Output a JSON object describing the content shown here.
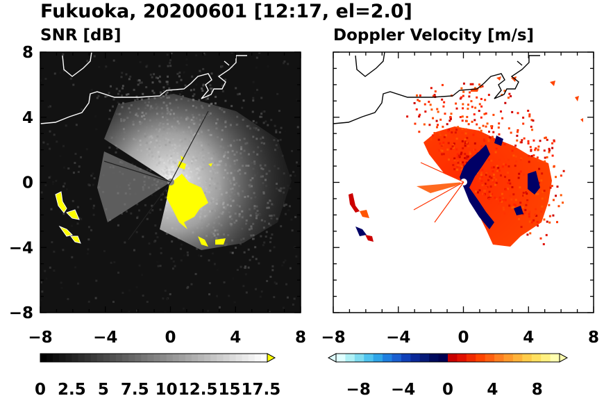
{
  "figure": {
    "title": "Fukuoka, 20200601 [12:17, el=2.0]"
  },
  "panels": {
    "snr": {
      "subtitle": "SNR [dB]"
    },
    "doppler": {
      "subtitle": "Doppler Velocity [m/s]"
    }
  },
  "chart_data": [
    {
      "type": "heatmap",
      "name_printed": "SNR [dB]",
      "x_range": [
        -8,
        8
      ],
      "y_range": [
        -8,
        8
      ],
      "x_ticks": [
        -8,
        -4,
        0,
        4,
        8
      ],
      "y_ticks": [
        -8,
        -4,
        0,
        4,
        8
      ],
      "x_tick_labels": [
        "−8",
        "−4",
        "0",
        "4",
        "8"
      ],
      "y_tick_labels": [
        "−8",
        "−4",
        "0",
        "4",
        "8"
      ],
      "background": "#111111",
      "colorbar": {
        "ticks": [
          0,
          2.5,
          5,
          7.5,
          10,
          12.5,
          15,
          17.5
        ],
        "tick_labels": [
          "0",
          "2.5",
          "5",
          "7.5",
          "10",
          "12.5",
          "15",
          "17.5"
        ],
        "range": [
          0,
          18
        ],
        "extend": "max",
        "extend_color": "#ffff00"
      },
      "grid": false,
      "features": [
        "coastline",
        "radar echo (grayscale SNR)",
        "high SNR clutter in yellow near radar and coast"
      ]
    },
    {
      "type": "heatmap",
      "name_printed": "Doppler Velocity [m/s]",
      "x_range": [
        -8,
        8
      ],
      "y_range": [
        -8,
        8
      ],
      "x_ticks": [
        -8,
        -4,
        0,
        4,
        8
      ],
      "y_ticks": [
        -8,
        -4,
        0,
        4,
        8
      ],
      "x_tick_labels": [
        "−8",
        "−4",
        "0",
        "4",
        "8"
      ],
      "y_tick_labels": [
        "−8",
        "−4",
        "0",
        "4",
        "8"
      ],
      "background": "#ffffff",
      "colorbar": {
        "ticks": [
          -8,
          -4,
          0,
          4,
          8
        ],
        "tick_labels": [
          "−8",
          "−4",
          "0",
          "4",
          "8"
        ],
        "range": [
          -10,
          10
        ],
        "extend": "both"
      },
      "grid": false,
      "features": [
        "coastline",
        "receding echoes (red) east of radar",
        "approaching echoes (navy) near radar"
      ]
    }
  ],
  "colors": {
    "velocity_scale": [
      "#e0ffff",
      "#aef0f5",
      "#7fdcf0",
      "#4fc3ef",
      "#2fa5e8",
      "#1f7fe0",
      "#1a5fd0",
      "#1040b8",
      "#0a2898",
      "#061a78",
      "#000a5c",
      "#000050",
      "#c80000",
      "#e01000",
      "#f02a00",
      "#ff4400",
      "#ff6010",
      "#ff7f20",
      "#ff9a2c",
      "#ffb33a",
      "#ffcc4a",
      "#ffe060",
      "#fff080",
      "#ffffb0"
    ],
    "clutter": "#ffff00",
    "receding": "#ff3300",
    "approaching": "#000066"
  }
}
